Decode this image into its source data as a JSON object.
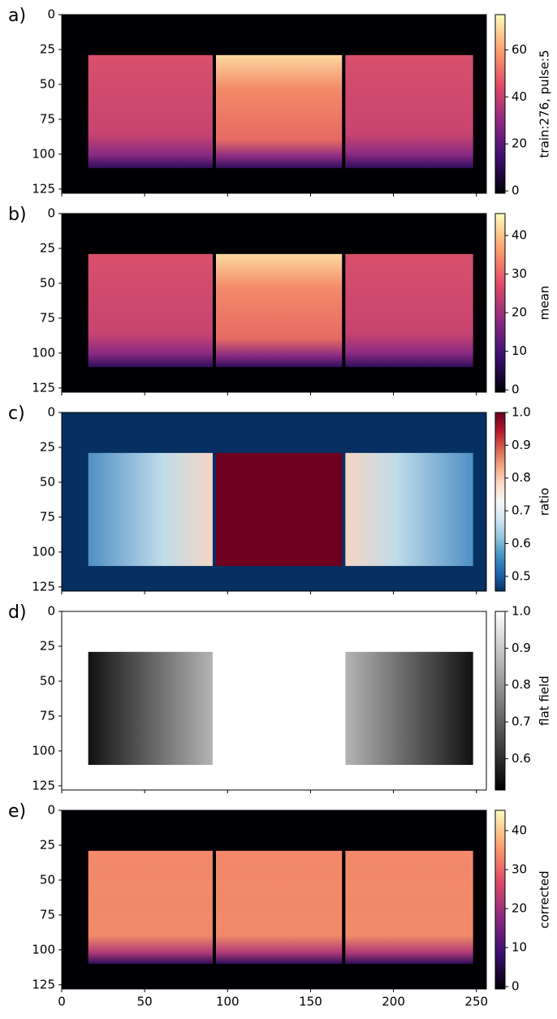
{
  "chart_data": [
    {
      "type": "heatmap",
      "panel_label": "a)",
      "colorbar_label": "train:276, pulse:5",
      "cmap": "magma",
      "xlim": [
        0,
        256
      ],
      "ylim": [
        128,
        0
      ],
      "xticks": [
        0,
        50,
        100,
        150,
        200,
        250
      ],
      "yticks": [
        0,
        25,
        50,
        75,
        100,
        125
      ],
      "clim": [
        -1,
        75
      ],
      "cticks": [
        0,
        20,
        40,
        60
      ]
    },
    {
      "type": "heatmap",
      "panel_label": "b)",
      "colorbar_label": "mean",
      "cmap": "magma",
      "xlim": [
        0,
        256
      ],
      "ylim": [
        128,
        0
      ],
      "xticks": [
        0,
        50,
        100,
        150,
        200,
        250
      ],
      "yticks": [
        0,
        25,
        50,
        75,
        100,
        125
      ],
      "clim": [
        -0.6,
        45.7
      ],
      "cticks": [
        0,
        10,
        20,
        30,
        40
      ]
    },
    {
      "type": "heatmap",
      "panel_label": "c)",
      "colorbar_label": "ratio",
      "cmap": "RdBu_r",
      "xlim": [
        0,
        256
      ],
      "ylim": [
        128,
        0
      ],
      "xticks": [
        0,
        50,
        100,
        150,
        200,
        250
      ],
      "yticks": [
        0,
        25,
        50,
        75,
        100,
        125
      ],
      "clim": [
        0.455,
        1.0
      ],
      "cticks": [
        0.5,
        0.6,
        0.7,
        0.8,
        0.9,
        {
          "value": 1,
          "label": "1.0"
        }
      ]
    },
    {
      "type": "heatmap",
      "panel_label": "d)",
      "colorbar_label": "flat field",
      "cmap": "gray",
      "xlim": [
        0,
        256
      ],
      "ylim": [
        128,
        0
      ],
      "xticks": [
        0,
        50,
        100,
        150,
        200,
        250
      ],
      "yticks": [
        0,
        25,
        50,
        75,
        100,
        125
      ],
      "clim": [
        0.515,
        1.0
      ],
      "cticks": [
        0.6,
        0.7,
        0.8,
        0.9,
        {
          "value": 1,
          "label": "1.0"
        }
      ]
    },
    {
      "type": "heatmap",
      "panel_label": "e)",
      "colorbar_label": "corrected",
      "cmap": "magma",
      "xlim": [
        0,
        256
      ],
      "ylim": [
        128,
        0
      ],
      "xticks": [
        0,
        50,
        100,
        150,
        200,
        250
      ],
      "yticks": [
        0,
        25,
        50,
        75,
        100,
        125
      ],
      "clim": [
        -0.6,
        45.2
      ],
      "cticks": [
        0,
        10,
        20,
        30,
        40
      ],
      "x_tick_labels": true
    }
  ]
}
